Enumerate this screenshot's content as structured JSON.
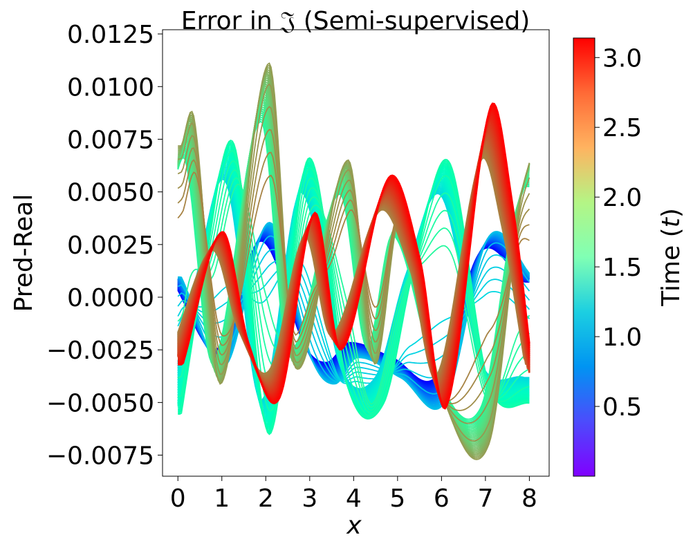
{
  "chart_data": {
    "type": "line",
    "title_prefix": "Error in ",
    "title_symbol": "𝔍",
    "title_suffix": " (Semi-supervised)",
    "xlabel": "x",
    "ylabel": "Pred-Real",
    "xlim": [
      -0.35,
      8.45
    ],
    "ylim": [
      -0.0085,
      0.0127
    ],
    "x_ticks": [
      0,
      1,
      2,
      3,
      4,
      5,
      6,
      7,
      8
    ],
    "x_tick_labels": [
      "0",
      "1",
      "2",
      "3",
      "4",
      "5",
      "6",
      "7",
      "8"
    ],
    "y_ticks": [
      -0.0075,
      -0.005,
      -0.0025,
      0.0,
      0.0025,
      0.005,
      0.0075,
      0.01,
      0.0125
    ],
    "y_tick_labels": [
      "−0.0075",
      "−0.0050",
      "−0.0025",
      "0.0000",
      "0.0025",
      "0.0050",
      "0.0075",
      "0.0100",
      "0.0125"
    ],
    "colorbar": {
      "label_prefix": "Time (",
      "label_var": "t",
      "label_suffix": ")",
      "colormap": "rainbow",
      "range": [
        0.0,
        3.14
      ],
      "ticks": [
        0.5,
        1.0,
        1.5,
        2.0,
        2.5,
        3.0
      ],
      "tick_labels": [
        "0.5",
        "1.0",
        "1.5",
        "2.0",
        "2.5",
        "3.0"
      ]
    },
    "series_family": {
      "description_of_values": "one curve of error vs x per time step, colored by time",
      "x_range": [
        0,
        8
      ],
      "t_range": [
        0.0,
        3.14
      ],
      "groups": [
        {
          "t_range": [
            0.0,
            1.0
          ],
          "color_hint": "blue",
          "keypoints_x": [
            0,
            1,
            2,
            3,
            3.5,
            4,
            5,
            6,
            7,
            8
          ],
          "keypoints_y": [
            0.001,
            -0.0034,
            0.0037,
            -0.0032,
            -0.0043,
            -0.003,
            -0.004,
            -0.0052,
            0.003,
            0.001
          ]
        },
        {
          "t_range": [
            1.0,
            1.8
          ],
          "color_hint": "cyan-green",
          "keypoints_x": [
            0,
            0.5,
            1.2,
            2.0,
            2.9,
            3.8,
            4.6,
            5.3,
            6.1,
            7.0,
            8.0
          ],
          "keypoints_y": [
            -0.0058,
            0.001,
            0.0076,
            -0.0068,
            0.0069,
            -0.0045,
            -0.0053,
            0.0015,
            0.0067,
            -0.0043,
            -0.0053
          ]
        },
        {
          "t_range": [
            1.8,
            2.6
          ],
          "color_hint": "orange",
          "keypoints_x": [
            0,
            0.3,
            0.9,
            2.0,
            2.6,
            3.8,
            4.4,
            5.0,
            6.0,
            7.0,
            7.7,
            8.0
          ],
          "keypoints_y": [
            0.0075,
            0.0088,
            -0.0043,
            0.0116,
            -0.0035,
            0.0068,
            -0.0033,
            0.0041,
            -0.0052,
            -0.0073,
            0.0045,
            0.0073
          ]
        },
        {
          "t_range": [
            2.6,
            3.14
          ],
          "color_hint": "red",
          "keypoints_x": [
            0,
            0.9,
            1.5,
            2.2,
            3.0,
            3.6,
            4.7,
            5.4,
            6.0,
            7.0,
            7.5,
            8.0
          ],
          "keypoints_y": [
            -0.0032,
            0.0031,
            -0.0022,
            -0.0048,
            0.004,
            -0.0025,
            0.0057,
            0.0018,
            -0.0052,
            0.009,
            0.0045,
            -0.0042
          ]
        }
      ]
    }
  }
}
